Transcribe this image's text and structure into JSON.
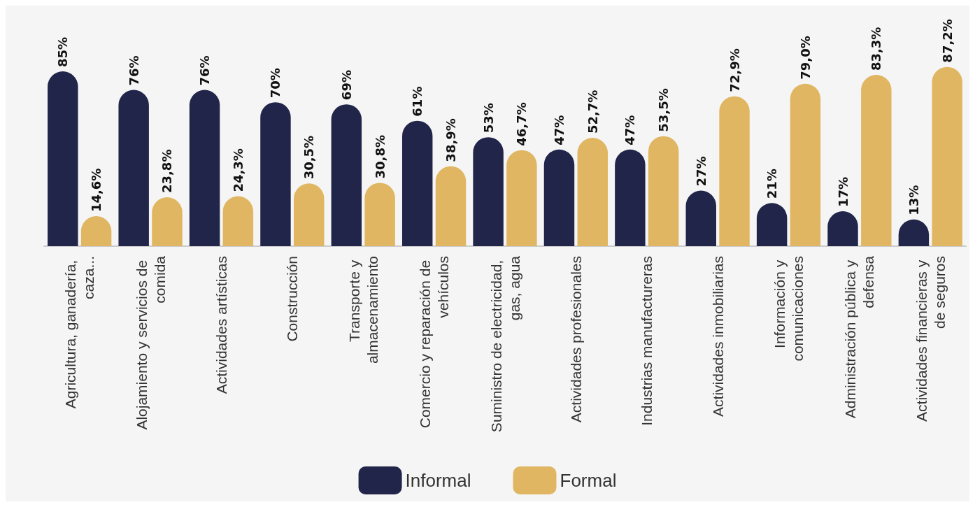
{
  "chart_data": {
    "type": "bar",
    "categories": [
      "Agricultura, ganadería, caza...",
      "Alojamiento y servicios de comida",
      "Actividades artísticas",
      "Construcción",
      "Transporte y almacenamiento",
      "Comercio y reparación de vehículos",
      "Suministro de electricidad, gas, agua",
      "Actividades profesionales",
      "Industrias manufactureras",
      "Actividades inmobiliarias",
      "Información y comunicaciones",
      "Administración pública y defensa",
      "Actividades financieras y de seguros"
    ],
    "series": [
      {
        "name": "Informal",
        "color": "#22254a",
        "values": [
          85,
          76,
          76,
          70,
          69,
          61,
          53,
          47,
          47,
          27,
          21,
          17,
          13
        ],
        "value_labels": [
          "85%",
          "76%",
          "76%",
          "70%",
          "69%",
          "61%",
          "53%",
          "47%",
          "47%",
          "27%",
          "21%",
          "17%",
          "13%"
        ]
      },
      {
        "name": "Formal",
        "color": "#e0b663",
        "values": [
          14.6,
          23.8,
          24.3,
          30.5,
          30.8,
          38.9,
          46.7,
          52.7,
          53.5,
          72.9,
          79.0,
          83.3,
          87.2
        ],
        "value_labels": [
          "14,6%",
          "23,8%",
          "24,3%",
          "30,5%",
          "30,8%",
          "38,9%",
          "46,7%",
          "52,7%",
          "53,5%",
          "72,9%",
          "79,0%",
          "83,3%",
          "87,2%"
        ]
      }
    ],
    "legend": "bottom",
    "grid": false
  }
}
